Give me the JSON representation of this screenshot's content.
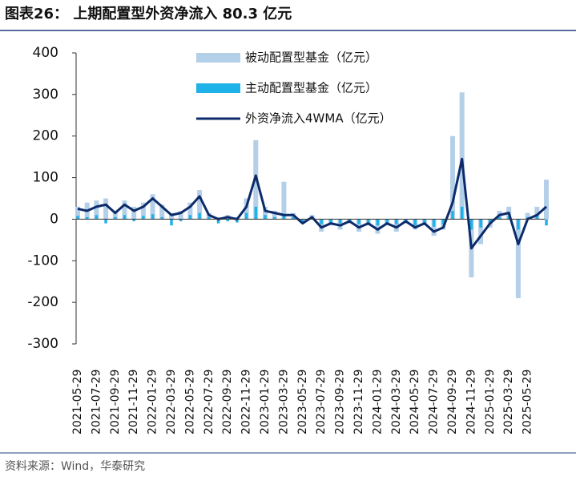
{
  "chart_data": {
    "type": "bar_line",
    "title": "图表26：  上期配置型外资净流入 80.3 亿元",
    "source": "资料来源：Wind，华泰研究",
    "categories": [
      "2021-05-29",
      null,
      "2021-07-29",
      null,
      "2021-09-29",
      null,
      "2021-11-29",
      null,
      "2022-01-29",
      null,
      "2022-03-29",
      null,
      "2022-05-29",
      null,
      "2022-07-29",
      null,
      "2022-09-29",
      null,
      "2022-11-29",
      null,
      "2023-01-29",
      null,
      "2023-03-29",
      null,
      "2023-05-29",
      null,
      "2023-07-29",
      null,
      "2023-09-29",
      null,
      "2023-11-29",
      null,
      "2024-01-29",
      null,
      "2024-03-29",
      null,
      "2024-05-29",
      null,
      "2024-07-29",
      null,
      "2024-09-29",
      null,
      "2024-11-29",
      null,
      "2025-01-29",
      null,
      "2025-03-29",
      null,
      "2025-05-29",
      null,
      null
    ],
    "series": [
      {
        "name": "被动配置型基金（亿元）",
        "kind": "bar",
        "color": "#b4cfe8",
        "values": [
          30,
          40,
          45,
          50,
          20,
          45,
          30,
          40,
          60,
          35,
          15,
          20,
          40,
          70,
          15,
          5,
          10,
          5,
          50,
          190,
          30,
          20,
          90,
          15,
          -10,
          10,
          -30,
          -15,
          -25,
          -10,
          -30,
          -15,
          -35,
          -15,
          -30,
          -10,
          -25,
          -15,
          -40,
          -25,
          200,
          305,
          -140,
          -60,
          -20,
          20,
          30,
          -190,
          15,
          30,
          95
        ]
      },
      {
        "name": "主动配置型基金（亿元）",
        "kind": "bar",
        "color": "#1fb2e8",
        "values": [
          8,
          5,
          10,
          -10,
          5,
          10,
          -5,
          8,
          12,
          5,
          -15,
          -5,
          10,
          15,
          5,
          -10,
          -5,
          -8,
          15,
          30,
          10,
          5,
          8,
          5,
          -10,
          5,
          -12,
          -8,
          -10,
          -5,
          -12,
          -8,
          -15,
          -10,
          -12,
          -8,
          -15,
          -10,
          -18,
          -12,
          20,
          30,
          -25,
          -20,
          -10,
          5,
          8,
          -25,
          5,
          8,
          -15
        ]
      },
      {
        "name": "外资净流入4WMA（亿元）",
        "kind": "line",
        "color": "#0d2b6b",
        "values": [
          25,
          20,
          30,
          35,
          15,
          35,
          20,
          30,
          50,
          30,
          10,
          15,
          30,
          55,
          10,
          0,
          5,
          0,
          30,
          105,
          20,
          15,
          10,
          10,
          -10,
          5,
          -20,
          -10,
          -15,
          -5,
          -20,
          -10,
          -25,
          -10,
          -20,
          -5,
          -20,
          -10,
          -30,
          -20,
          40,
          145,
          -70,
          -40,
          -10,
          10,
          15,
          -60,
          0,
          10,
          30
        ]
      }
    ],
    "ylim": [
      -300,
      400
    ],
    "yticks": [
      -300,
      -200,
      -100,
      0,
      100,
      200,
      300,
      400
    ]
  }
}
